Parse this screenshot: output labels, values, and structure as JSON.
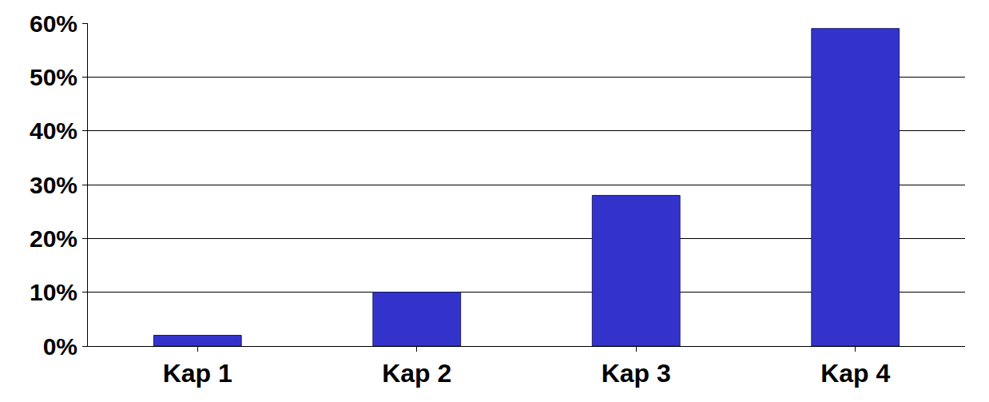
{
  "chart_data": {
    "type": "bar",
    "categories": [
      "Kap 1",
      "Kap 2",
      "Kap 3",
      "Kap 4"
    ],
    "values": [
      2,
      10,
      28,
      59
    ],
    "color": "#3333cc",
    "ylim": [
      0,
      60
    ],
    "yticks": [
      {
        "value": 0,
        "label": "0%"
      },
      {
        "value": 10,
        "label": "10%"
      },
      {
        "value": 20,
        "label": "20%"
      },
      {
        "value": 30,
        "label": "30%"
      },
      {
        "value": 40,
        "label": "40%"
      },
      {
        "value": 50,
        "label": "50%"
      },
      {
        "value": 60,
        "label": "60%"
      }
    ],
    "grid": true
  }
}
